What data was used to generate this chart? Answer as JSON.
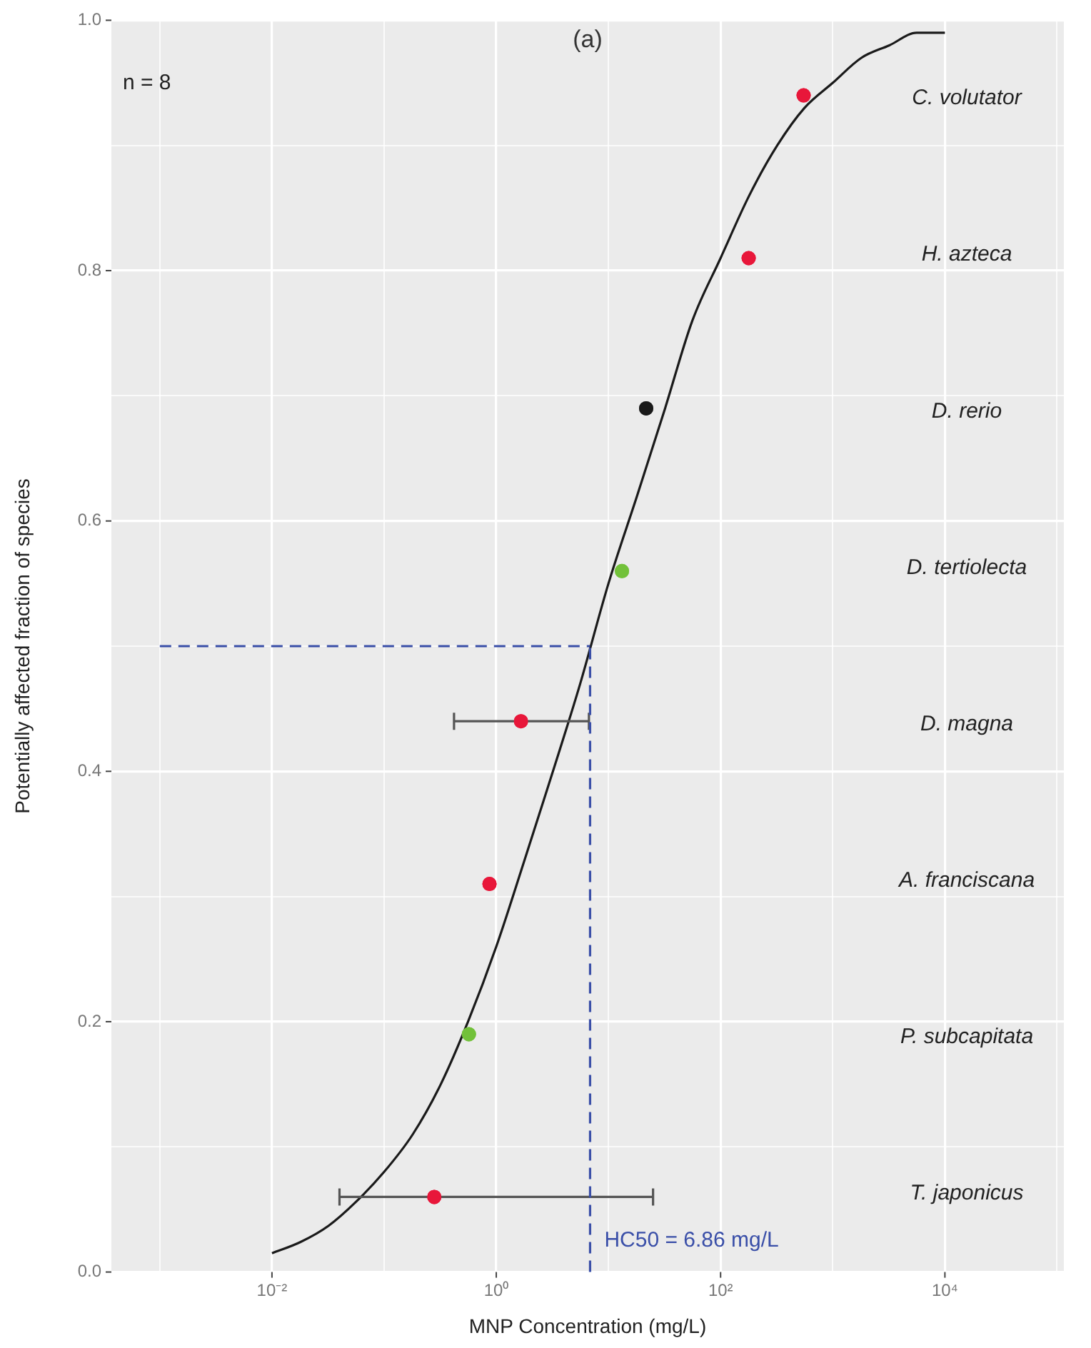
{
  "chart_data": {
    "type": "scatter",
    "title": "(a)",
    "xlabel": "MNP Concentration (mg/L)",
    "ylabel": "Potentially affected fraction of species",
    "log": "x",
    "grid": true,
    "legend": false,
    "marker": "circle",
    "xlim": [
      0.00037,
      115000
    ],
    "xticks": [
      {
        "value": 0.001,
        "label": null
      },
      {
        "value": 0.01,
        "label": "10⁻²"
      },
      {
        "value": 0.1,
        "label": null
      },
      {
        "value": 1,
        "label": "10⁰"
      },
      {
        "value": 10,
        "label": null
      },
      {
        "value": 100,
        "label": "10²"
      },
      {
        "value": 1000,
        "label": null
      },
      {
        "value": 10000,
        "label": "10⁴"
      },
      {
        "value": 100000,
        "label": null
      }
    ],
    "ylim": [
      0,
      1
    ],
    "yticks": [
      {
        "value": 0,
        "label": "0.0"
      },
      {
        "value": 0.1,
        "label": null
      },
      {
        "value": 0.2,
        "label": "0.2"
      },
      {
        "value": 0.3,
        "label": null
      },
      {
        "value": 0.4,
        "label": "0.4"
      },
      {
        "value": 0.5,
        "label": null
      },
      {
        "value": 0.6,
        "label": "0.6"
      },
      {
        "value": 0.7,
        "label": null
      },
      {
        "value": 0.8,
        "label": "0.8"
      },
      {
        "value": 0.9,
        "label": null
      },
      {
        "value": 1,
        "label": "1.0"
      }
    ],
    "series": [
      {
        "type": "line",
        "color": "#1a1a1a",
        "marker": "none",
        "x": [
          0.01,
          0.018,
          0.032,
          0.056,
          0.1,
          0.18,
          0.32,
          0.56,
          1,
          1.8,
          3.2,
          5.6,
          10,
          18,
          32,
          56,
          100,
          180,
          320,
          560,
          1000,
          1800,
          3200,
          5600,
          10000
        ],
        "values": [
          0.015,
          0.024,
          0.037,
          0.056,
          0.08,
          0.11,
          0.15,
          0.2,
          0.26,
          0.33,
          0.4,
          0.47,
          0.55,
          0.62,
          0.69,
          0.76,
          0.81,
          0.86,
          0.9,
          0.93,
          0.95,
          0.97,
          0.98,
          0.99,
          0.99
        ]
      },
      {
        "x": [
          0.28,
          0.57,
          0.87,
          1.66,
          13.2,
          21.7,
          178,
          550
        ],
        "values": [
          0.06,
          0.19,
          0.31,
          0.44,
          0.56,
          0.69,
          0.81,
          0.94
        ],
        "colors": [
          "#e8173a",
          "#72c13a",
          "#e8173a",
          "#e8173a",
          "#72c13a",
          "#1a1a1a",
          "#e8173a",
          "#e8173a"
        ],
        "xerrors": [
          [
            0.04,
            25
          ],
          null,
          null,
          [
            0.42,
            6.7
          ],
          null,
          null,
          null,
          null
        ]
      }
    ],
    "ref_lines": [
      {
        "axis": "x",
        "value": 6.86,
        "label": "HC50 = 6.86 mg/L",
        "color": "#3a4fa8",
        "line_style": "dashed"
      },
      {
        "axis": "y",
        "value": 0.5,
        "label": null,
        "color": "#3a4fa8",
        "line_style": "dashed"
      }
    ],
    "annotations": [
      "n = 8",
      "T. japonicus",
      "P. subcapitata",
      "A. franciscana",
      "D. magna",
      "D. tertiolecta",
      "D. rerio",
      "H. azteca",
      "C. volutator"
    ]
  }
}
